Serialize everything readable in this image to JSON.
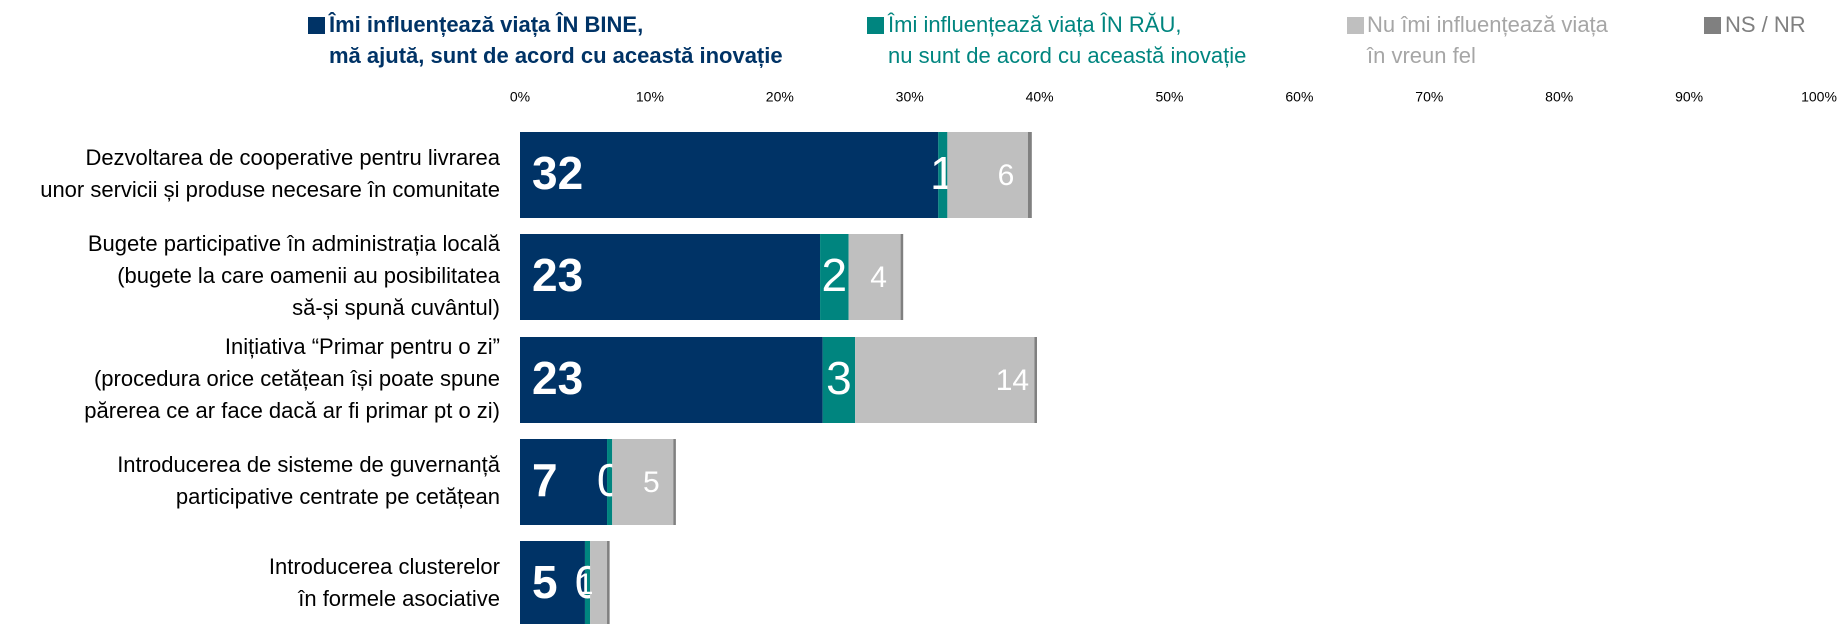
{
  "chart_data": {
    "type": "stacked-bar-horizontal",
    "categories": [
      "Dezvoltarea de cooperative pentru livrarea\nunor servicii și produse necesare în comunitate",
      "Bugete participative în administrația locală\n(bugete la care oamenii au posibilitatea\nsă-și spună cuvântul)",
      "Inițiativa “Primar pentru o zi”\n(procedura orice cetățean își poate spune\npărerea ce ar face dacă ar fi primar pt o zi)",
      "Introducerea de sisteme de guvernanță\nparticipative centrate pe cetățean",
      "Introducerea clusterelor\nîn formele asociative"
    ],
    "series": [
      {
        "name": "Îmi influențează viața ÎN BINE,\nmă ajută, sunt de acord cu această inovație",
        "color": "#003366",
        "values": [
          32.2,
          23.1,
          23.3,
          6.7,
          5.0
        ],
        "value_labels": [
          "32",
          "23",
          "23",
          "7",
          "5"
        ]
      },
      {
        "name": "Îmi influențează viața ÎN RĂU,\nnu sunt de acord cu această inovație",
        "color": "#00857f",
        "values": [
          0.7,
          2.2,
          2.5,
          0.4,
          0.4
        ],
        "value_labels": [
          "1",
          "2",
          "3",
          "0",
          "0"
        ]
      },
      {
        "name": "Nu îmi influențează viața\nîn vreun fel",
        "color": "#bfbfbf",
        "values": [
          6.2,
          4.0,
          13.8,
          4.7,
          1.3
        ],
        "value_labels": [
          "6",
          "4",
          "14",
          "5",
          "1"
        ]
      },
      {
        "name": "NS / NR",
        "color": "#808080",
        "values": [
          0.3,
          0.2,
          0.2,
          0.2,
          0.2
        ]
      }
    ],
    "xlim": [
      0,
      100
    ],
    "xticks": [
      {
        "value": 0,
        "label": "0%"
      },
      {
        "value": 10,
        "label": "10%"
      },
      {
        "value": 20,
        "label": "20%"
      },
      {
        "value": 30,
        "label": "30%"
      },
      {
        "value": 40,
        "label": "40%"
      },
      {
        "value": 50,
        "label": "50%"
      },
      {
        "value": 60,
        "label": "60%"
      },
      {
        "value": 70,
        "label": "70%"
      },
      {
        "value": 80,
        "label": "80%"
      },
      {
        "value": 90,
        "label": "90%"
      },
      {
        "value": 100,
        "label": "100%"
      }
    ],
    "legend": "top"
  }
}
